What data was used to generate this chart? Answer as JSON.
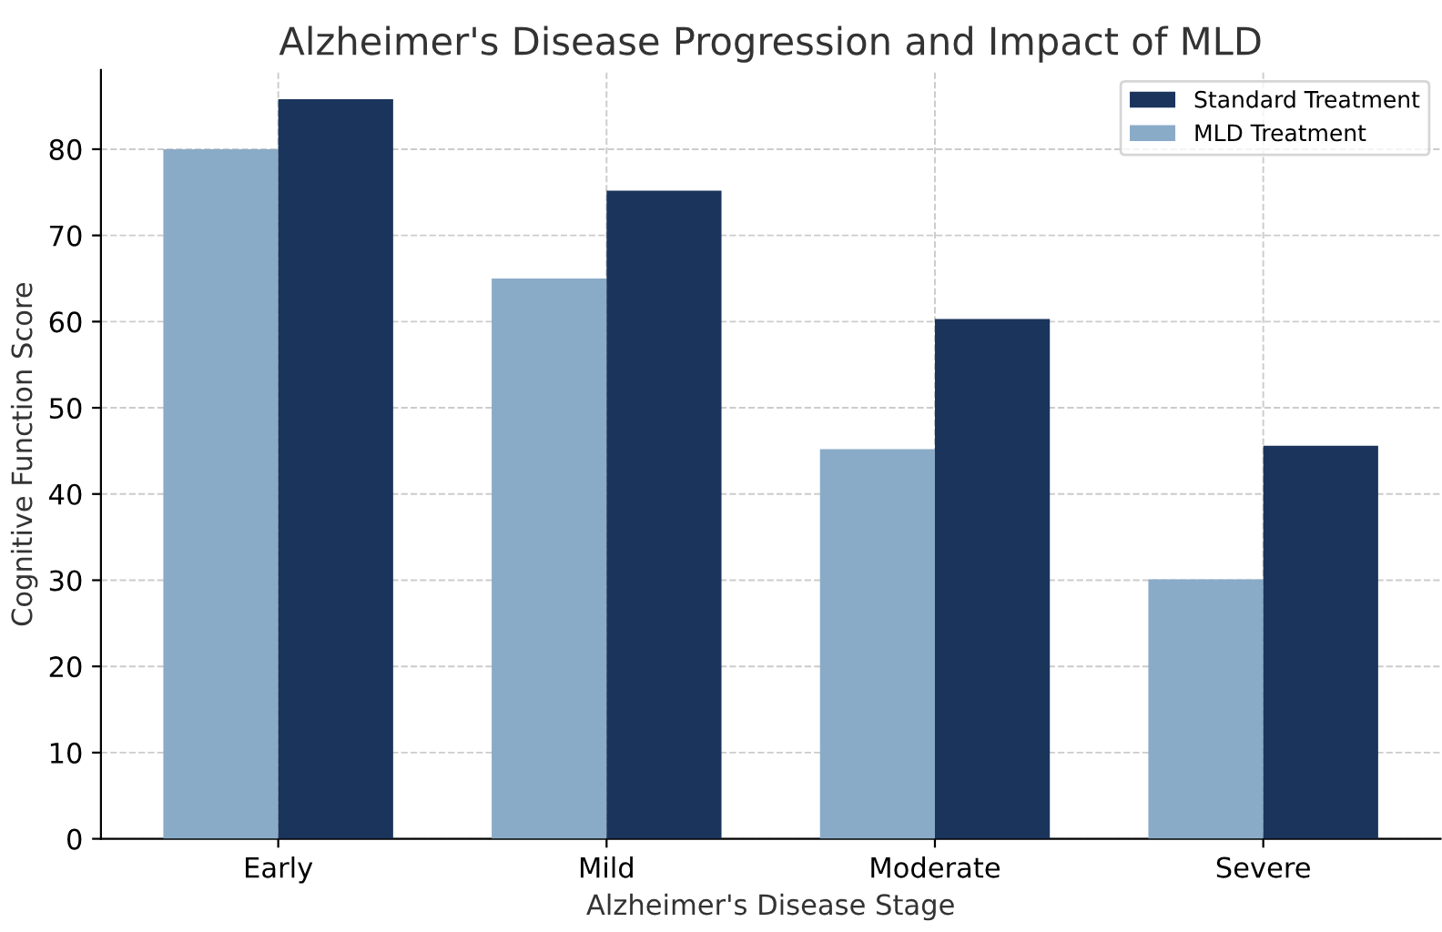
{
  "chart_data": {
    "type": "bar",
    "title": "Alzheimer's Disease Progression and Impact of MLD",
    "xlabel": "Alzheimer's Disease Stage",
    "ylabel": "Cognitive Function Score",
    "categories": [
      "Early",
      "Mild",
      "Moderate",
      "Severe"
    ],
    "series": [
      {
        "name": "MLD Treatment",
        "color": "#8aabc7",
        "values": [
          80,
          65,
          45.2,
          30.1
        ]
      },
      {
        "name": "Standard Treatment",
        "color": "#1a345c",
        "values": [
          85.8,
          75.2,
          60.3,
          45.6
        ]
      }
    ],
    "ylim": [
      0,
      89.2
    ],
    "yticks": [
      0,
      10,
      20,
      30,
      40,
      50,
      60,
      70,
      80
    ],
    "grid": true,
    "legend": "top right"
  }
}
